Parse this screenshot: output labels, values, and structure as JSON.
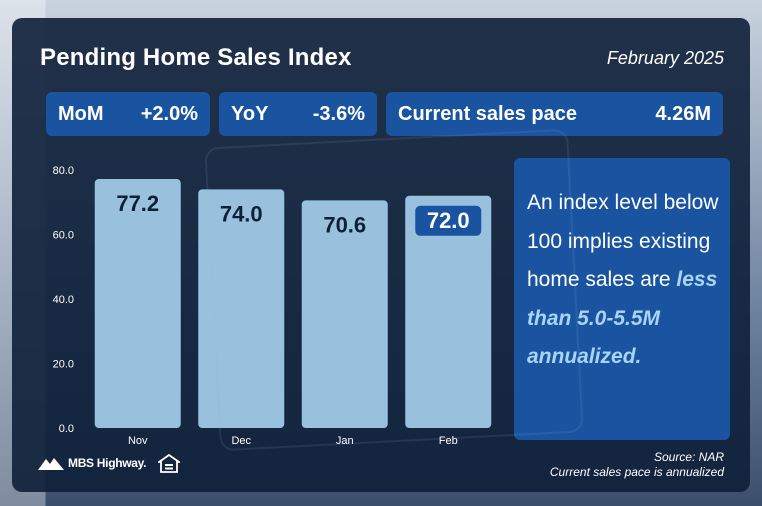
{
  "header": {
    "title": "Pending Home Sales Index",
    "date": "February 2025"
  },
  "stats": {
    "mom_label": "MoM",
    "mom_value": "+2.0%",
    "yoy_label": "YoY",
    "yoy_value": "-3.6%",
    "pace_label": "Current sales pace",
    "pace_value": "4.26M"
  },
  "callout": {
    "text_plain": "An index level below 100 implies existing home sales are ",
    "text_highlight": "less than 5.0-5.5M annualized."
  },
  "footer": {
    "source": "Source: NAR",
    "note": "Current sales pace is annualized",
    "logo": "MBS Highway."
  },
  "colors": {
    "bar": "#a7d2ee",
    "highlight_label_bg": "#1a54a0",
    "panel": "#1a54a0",
    "card": "#0e1f38"
  },
  "chart_data": {
    "type": "bar",
    "categories": [
      "Nov",
      "Dec",
      "Jan",
      "Feb"
    ],
    "values": [
      77.2,
      74.0,
      70.6,
      72.0
    ],
    "data_labels": [
      "77.2",
      "74.0",
      "70.6",
      "72.0"
    ],
    "highlighted_index": 3,
    "ylim": [
      0,
      80
    ],
    "yticks": [
      "0.0",
      "20.0",
      "40.0",
      "60.0",
      "80.0"
    ],
    "ytick_values": [
      0,
      20,
      40,
      60,
      80
    ],
    "grid": false,
    "title": "",
    "xlabel": "",
    "ylabel": ""
  }
}
